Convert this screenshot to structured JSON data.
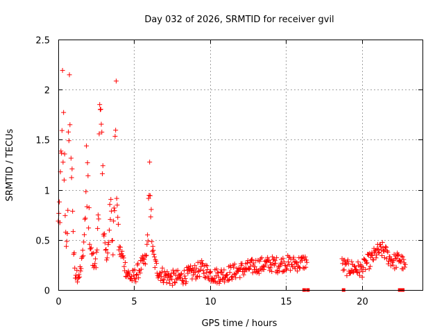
{
  "chart_data": {
    "type": "scatter",
    "title": "Day 032 of 2026, SRMTID for receiver gvil",
    "xlabel": "GPS time / hours",
    "ylabel": "SRMTID / TECUs",
    "xlim": [
      0,
      24
    ],
    "ylim": [
      0,
      2.5
    ],
    "grid": true,
    "marker": "+",
    "color": "#ff0000",
    "x_ticks": [
      0,
      5,
      10,
      15,
      20
    ],
    "x_tick_labels": [
      "0",
      "5",
      "10",
      "15",
      "20"
    ],
    "y_ticks": [
      0,
      0.5,
      1,
      1.5,
      2,
      2.5
    ],
    "y_tick_labels": [
      "0",
      "0.5",
      "1",
      "1.5",
      "2",
      "2.5"
    ],
    "series": [
      {
        "name": "SRMTID",
        "profile": [
          [
            0.0,
            0.62
          ],
          [
            0.1,
            0.85
          ],
          [
            0.2,
            1.3
          ],
          [
            0.3,
            1.85
          ],
          [
            0.4,
            1.2
          ],
          [
            0.5,
            0.45
          ],
          [
            0.6,
            0.6
          ],
          [
            0.7,
            1.5
          ],
          [
            0.8,
            2.08
          ],
          [
            0.9,
            1.4
          ],
          [
            1.0,
            0.4
          ],
          [
            1.1,
            0.2
          ],
          [
            1.3,
            0.15
          ],
          [
            1.5,
            0.2
          ],
          [
            1.6,
            0.35
          ],
          [
            1.7,
            0.5
          ],
          [
            1.8,
            0.9
          ],
          [
            1.9,
            1.3
          ],
          [
            2.0,
            0.7
          ],
          [
            2.1,
            0.4
          ],
          [
            2.3,
            0.3
          ],
          [
            2.5,
            0.25
          ],
          [
            2.6,
            0.6
          ],
          [
            2.7,
            1.4
          ],
          [
            2.8,
            1.85
          ],
          [
            2.9,
            1.2
          ],
          [
            3.0,
            0.6
          ],
          [
            3.2,
            0.3
          ],
          [
            3.3,
            0.5
          ],
          [
            3.5,
            0.8
          ],
          [
            3.6,
            0.4
          ],
          [
            3.7,
            1.0
          ],
          [
            3.8,
            1.75
          ],
          [
            3.9,
            0.8
          ],
          [
            4.0,
            0.4
          ],
          [
            4.2,
            0.35
          ],
          [
            4.5,
            0.18
          ],
          [
            4.8,
            0.12
          ],
          [
            5.0,
            0.13
          ],
          [
            5.3,
            0.2
          ],
          [
            5.5,
            0.25
          ],
          [
            5.8,
            0.3
          ],
          [
            5.9,
            0.6
          ],
          [
            6.0,
            1.2
          ],
          [
            6.1,
            0.7
          ],
          [
            6.2,
            0.4
          ],
          [
            6.4,
            0.25
          ],
          [
            6.6,
            0.18
          ],
          [
            7.0,
            0.14
          ],
          [
            7.5,
            0.12
          ],
          [
            8.0,
            0.12
          ],
          [
            8.5,
            0.15
          ],
          [
            9.0,
            0.18
          ],
          [
            9.5,
            0.22
          ],
          [
            10.0,
            0.16
          ],
          [
            10.5,
            0.14
          ],
          [
            11.0,
            0.16
          ],
          [
            11.5,
            0.18
          ],
          [
            12.0,
            0.2
          ],
          [
            12.5,
            0.22
          ],
          [
            13.0,
            0.24
          ],
          [
            13.5,
            0.25
          ],
          [
            14.0,
            0.26
          ],
          [
            14.5,
            0.25
          ],
          [
            15.0,
            0.27
          ],
          [
            15.5,
            0.26
          ],
          [
            16.0,
            0.27
          ],
          [
            16.4,
            0.29
          ],
          [
            18.7,
            0.25
          ],
          [
            19.0,
            0.22
          ],
          [
            19.5,
            0.22
          ],
          [
            20.0,
            0.2
          ],
          [
            20.3,
            0.27
          ],
          [
            20.6,
            0.3
          ],
          [
            21.0,
            0.38
          ],
          [
            21.4,
            0.4
          ],
          [
            21.8,
            0.32
          ],
          [
            22.2,
            0.28
          ],
          [
            22.5,
            0.32
          ],
          [
            22.9,
            0.2
          ]
        ],
        "segments": [
          [
            0.0,
            16.4
          ],
          [
            18.7,
            22.9
          ]
        ],
        "typical_scatter": 0.08
      }
    ],
    "zero_markers_x": [
      16.2,
      16.45,
      18.8,
      22.5,
      22.7
    ]
  }
}
